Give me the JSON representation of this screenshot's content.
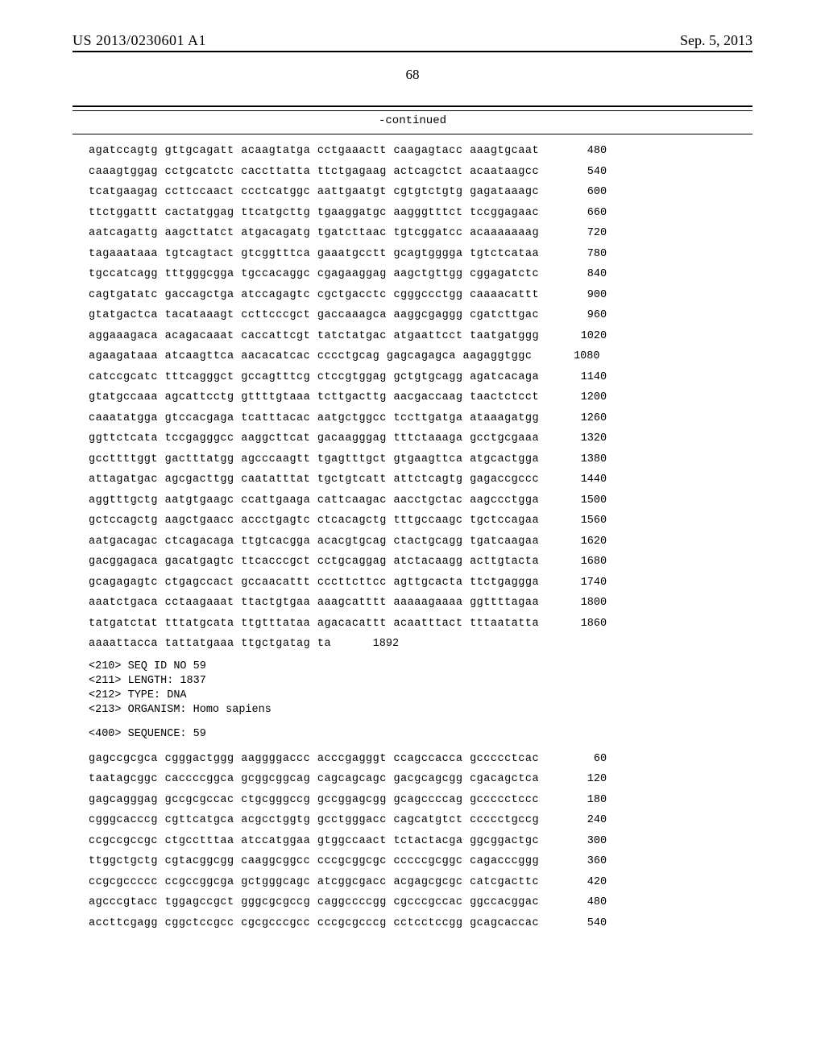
{
  "header": {
    "pub_number": "US 2013/0230601 A1",
    "pub_date": "Sep. 5, 2013"
  },
  "page_number": "68",
  "continued_label": "-continued",
  "seq_block_1": [
    {
      "t": "agatccagtg gttgcagatt acaagtatga cctgaaactt caagagtacc aaagtgcaat",
      "n": 480
    },
    {
      "t": "caaagtggag cctgcatctc caccttatta ttctgagaag actcagctct acaataagcc",
      "n": 540
    },
    {
      "t": "tcatgaagag ccttccaact ccctcatggc aattgaatgt cgtgtctgtg gagataaagc",
      "n": 600
    },
    {
      "t": "ttctggattt cactatggag ttcatgcttg tgaaggatgc aagggtttct tccggagaac",
      "n": 660
    },
    {
      "t": "aatcagattg aagcttatct atgacagatg tgatcttaac tgtcggatcc acaaaaaaag",
      "n": 720
    },
    {
      "t": "tagaaataaa tgtcagtact gtcggtttca gaaatgcctt gcagtgggga tgtctcataa",
      "n": 780
    },
    {
      "t": "tgccatcagg tttgggcgga tgccacaggc cgagaaggag aagctgttgg cggagatctc",
      "n": 840
    },
    {
      "t": "cagtgatatc gaccagctga atccagagtc cgctgacctc cgggccctgg caaaacattt",
      "n": 900
    },
    {
      "t": "gtatgactca tacataaagt ccttcccgct gaccaaagca aaggcgaggg cgatcttgac",
      "n": 960
    },
    {
      "t": "aggaaagaca acagacaaat caccattcgt tatctatgac atgaattcct taatgatggg",
      "n": 1020
    },
    {
      "t": "agaagataaa atcaagttca aacacatcac cccctgcag gagcagagca aagaggtggc",
      "n": 1080
    },
    {
      "t": "catccgcatc tttcagggct gccagtttcg ctccgtggag gctgtgcagg agatcacaga",
      "n": 1140
    },
    {
      "t": "gtatgccaaa agcattcctg gttttgtaaa tcttgacttg aacgaccaag taactctcct",
      "n": 1200
    },
    {
      "t": "caaatatgga gtccacgaga tcatttacac aatgctggcc tccttgatga ataaagatgg",
      "n": 1260
    },
    {
      "t": "ggttctcata tccgagggcc aaggcttcat gacaagggag tttctaaaga gcctgcgaaa",
      "n": 1320
    },
    {
      "t": "gccttttggt gactttatgg agcccaagtt tgagtttgct gtgaagttca atgcactgga",
      "n": 1380
    },
    {
      "t": "attagatgac agcgacttgg caatatttat tgctgtcatt attctcagtg gagaccgccc",
      "n": 1440
    },
    {
      "t": "aggtttgctg aatgtgaagc ccattgaaga cattcaagac aacctgctac aagccctgga",
      "n": 1500
    },
    {
      "t": "gctccagctg aagctgaacc accctgagtc ctcacagctg tttgccaagc tgctccagaa",
      "n": 1560
    },
    {
      "t": "aatgacagac ctcagacaga ttgtcacgga acacgtgcag ctactgcagg tgatcaagaa",
      "n": 1620
    },
    {
      "t": "gacggagaca gacatgagtc ttcacccgct cctgcaggag atctacaagg acttgtacta",
      "n": 1680
    },
    {
      "t": "gcagagagtc ctgagccact gccaacattt cccttcttcc agttgcacta ttctgaggga",
      "n": 1740
    },
    {
      "t": "aaatctgaca cctaagaaat ttactgtgaa aaagcatttt aaaaagaaaa ggttttagaa",
      "n": 1800
    },
    {
      "t": "tatgatctat tttatgcata ttgtttataa agacacattt acaatttact tttaatatta",
      "n": 1860
    },
    {
      "t": "aaaattacca tattatgaaa ttgctgatag ta",
      "n": 1892
    }
  ],
  "seq_meta": {
    "seq_id": "<210> SEQ ID NO 59",
    "length": "<211> LENGTH: 1837",
    "type": "<212> TYPE: DNA",
    "organism": "<213> ORGANISM: Homo sapiens",
    "sequence": "<400> SEQUENCE: 59"
  },
  "seq_block_2": [
    {
      "t": "gagccgcgca cgggactggg aaggggaccc acccgagggt ccagccacca gccccctcac",
      "n": 60
    },
    {
      "t": "taatagcggc caccccggca gcggcggcag cagcagcagc gacgcagcgg cgacagctca",
      "n": 120
    },
    {
      "t": "gagcagggag gccgcgccac ctgcgggccg gccggagcgg gcagccccag gccccctccc",
      "n": 180
    },
    {
      "t": "cgggcacccg cgttcatgca acgcctggtg gcctgggacc cagcatgtct ccccctgccg",
      "n": 240
    },
    {
      "t": "ccgccgccgc ctgcctttaa atccatggaa gtggccaact tctactacga ggcggactgc",
      "n": 300
    },
    {
      "t": "ttggctgctg cgtacggcgg caaggcggcc cccgcggcgc cccccgcggc cagacccggg",
      "n": 360
    },
    {
      "t": "ccgcgccccc ccgccggcga gctgggcagc atcggcgacc acgagcgcgc catcgacttc",
      "n": 420
    },
    {
      "t": "agcccgtacc tggagccgct gggcgcgccg caggccccgg cgcccgccac ggccacggac",
      "n": 480
    },
    {
      "t": "accttcgagg cggctccgcc cgcgcccgcc cccgcgcccg cctcctccgg gcagcaccac",
      "n": 540
    }
  ]
}
